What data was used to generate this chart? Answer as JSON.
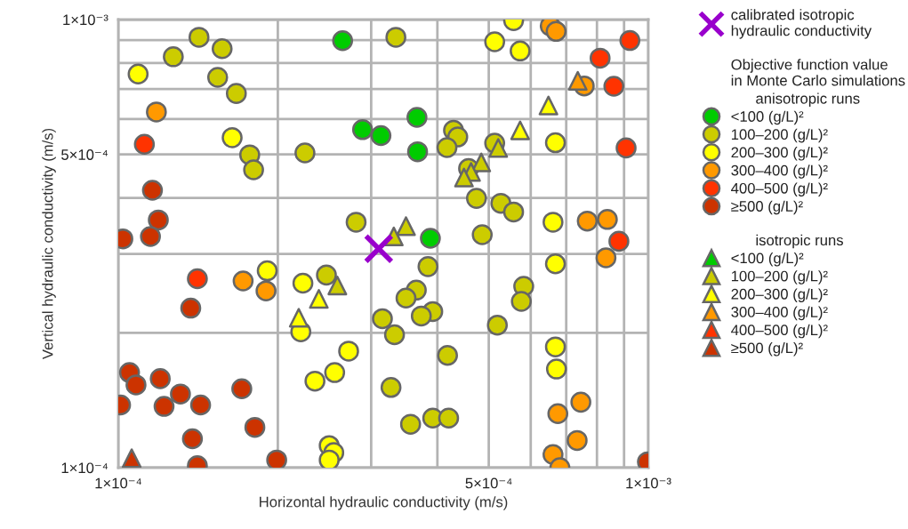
{
  "chart_data": {
    "type": "scatter",
    "xlabel": "Horizontal hydraulic conductivity (m/s)",
    "ylabel": "Vertical hydraulic conductivity (m/s)",
    "log": "xy",
    "xlim": [
      0.0001,
      0.001
    ],
    "ylim": [
      0.0001,
      0.001
    ],
    "xticks": [
      {
        "value": 0.0001,
        "label": "1×10⁻⁴"
      },
      {
        "value": 0.0002,
        "label": null
      },
      {
        "value": 0.0003,
        "label": null
      },
      {
        "value": 0.0004,
        "label": null
      },
      {
        "value": 0.0005,
        "label": "5×10⁻⁴"
      },
      {
        "value": 0.0006,
        "label": null
      },
      {
        "value": 0.0007,
        "label": null
      },
      {
        "value": 0.0008,
        "label": null
      },
      {
        "value": 0.0009,
        "label": null
      },
      {
        "value": 0.001,
        "label": "1×10⁻³"
      }
    ],
    "yticks": [
      {
        "value": 0.0001,
        "label": "1×10⁻⁴"
      },
      {
        "value": 0.0002,
        "label": null
      },
      {
        "value": 0.0003,
        "label": null
      },
      {
        "value": 0.0004,
        "label": null
      },
      {
        "value": 0.0005,
        "label": "5×10⁻⁴"
      },
      {
        "value": 0.0006,
        "label": null
      },
      {
        "value": 0.0007,
        "label": null
      },
      {
        "value": 0.0008,
        "label": null
      },
      {
        "value": 0.0009,
        "label": null
      },
      {
        "value": 0.001,
        "label": "1×10⁻³"
      }
    ],
    "grid": true,
    "legend": "right",
    "legend_title": "Objective function value\nin Monte Carlo simulations",
    "annotations": [
      "anisotropic runs",
      "isotropic runs"
    ],
    "series": [
      {
        "name": "calibrated isotropic\nhydraulic conductivity",
        "marker": "cross",
        "color": "#9900cc",
        "x": [
          0.00031
        ],
        "values": [
          0.000308
        ]
      },
      {
        "name": "<100 (g/L)²",
        "marker": "circle",
        "color": "#00cc00",
        "x": [
          0.000265,
          0.000289,
          0.000313,
          0.000366,
          0.000367,
          0.000388
        ],
        "values": [
          0.000897,
          0.000568,
          0.000551,
          0.000605,
          0.000507,
          0.000325
        ]
      },
      {
        "name": "100–200 (g/L)²",
        "marker": "circle",
        "color": "#cccc00",
        "x": [
          0.000142,
          0.000157,
          0.000127,
          0.000154,
          0.000167,
          0.000177,
          0.00018,
          0.000225,
          0.000281,
          0.000334,
          0.000429,
          0.000437,
          0.000417,
          0.000513,
          0.000458,
          0.000474,
          0.000527,
          0.000557,
          0.000486,
          0.000247,
          0.000384,
          0.000365,
          0.000349,
          0.000392,
          0.000373,
          0.000315,
          0.000332,
          0.000582,
          0.000576,
          0.000519,
          0.000418,
          0.000327,
          0.000356,
          0.000392,
          0.00042
        ],
        "values": [
          0.000913,
          0.000861,
          0.000826,
          0.000743,
          0.000684,
          0.000499,
          0.000462,
          0.000504,
          0.000353,
          0.000913,
          0.000566,
          0.000547,
          0.000518,
          0.00053,
          0.000465,
          0.000399,
          0.000389,
          0.000372,
          0.000331,
          0.000269,
          0.000281,
          0.000249,
          0.000239,
          0.000223,
          0.000218,
          0.000215,
          0.000198,
          0.000254,
          0.000235,
          0.000208,
          0.000178,
          0.000151,
          0.000125,
          0.000129,
          0.000129
        ]
      },
      {
        "name": "200–300 (g/L)²",
        "marker": "circle",
        "color": "#ffff00",
        "x": [
          0.000109,
          0.000164,
          0.000557,
          0.000513,
          0.000573,
          0.000668,
          0.000661,
          0.000668,
          0.000668,
          0.000671,
          0.000191,
          0.000223,
          0.000221,
          0.000272,
          0.000256,
          0.000235,
          0.00025,
          0.000255,
          0.00025
        ],
        "values": [
          0.000756,
          0.000545,
          0.000995,
          0.000892,
          0.000851,
          0.000531,
          0.000353,
          0.000285,
          0.000186,
          0.000166,
          0.000275,
          0.000258,
          0.000201,
          0.000182,
          0.000163,
          0.000156,
          0.000112,
          0.000108,
          0.000104
        ]
      },
      {
        "name": "300–400 (g/L)²",
        "marker": "circle",
        "color": "#ff9900",
        "x": [
          0.000118,
          0.000653,
          0.00067,
          0.000757,
          0.000767,
          0.000837,
          0.000832,
          0.000746,
          0.000675,
          0.000734,
          0.000661,
          0.000681,
          0.000172,
          0.00019
        ],
        "values": [
          0.000622,
          0.000968,
          0.000941,
          0.000711,
          0.000355,
          0.000358,
          0.000294,
          0.00014,
          0.000132,
          0.000115,
          0.000107,
          0.0001,
          0.000261,
          0.000248
        ]
      },
      {
        "name": "400–500 (g/L)²",
        "marker": "circle",
        "color": "#ff3300",
        "x": [
          0.000112,
          0.000923,
          0.000811,
          0.000861,
          0.000908,
          0.00088,
          0.000141
        ],
        "values": [
          0.000527,
          0.000898,
          0.00082,
          0.00071,
          0.000517,
          0.00032,
          0.000264
        ]
      },
      {
        "name": "≥500 (g/L)²",
        "marker": "circle",
        "color": "#cc3300",
        "x": [
          0.000116,
          0.000119,
          0.000102,
          0.000115,
          0.000137,
          0.000105,
          0.000108,
          0.00012,
          0.000101,
          0.000122,
          0.000131,
          0.000143,
          0.000171,
          0.000138,
          0.000181,
          0.000141,
          0.000199,
          0.000996
        ],
        "values": [
          0.000416,
          0.000357,
          0.000324,
          0.000328,
          0.000227,
          0.000163,
          0.000153,
          0.000158,
          0.000138,
          0.000137,
          0.000146,
          0.000138,
          0.00015,
          0.000116,
          0.000123,
          0.000101,
          0.000104,
          0.000103
        ]
      },
      {
        "name": "<100 (g/L)²",
        "marker": "triangle",
        "color": "#00cc00"
      },
      {
        "name": "100–200 (g/L)²",
        "marker": "triangle",
        "color": "#cccc00",
        "x": [
          0.000521,
          0.000484,
          0.000463,
          0.000449,
          0.000349,
          0.000331,
          0.000259
        ],
        "values": [
          0.000517,
          0.00048,
          0.000457,
          0.000444,
          0.000346,
          0.000328,
          0.000255
        ]
      },
      {
        "name": "200–300 (g/L)²",
        "marker": "triangle",
        "color": "#ffff00",
        "x": [
          0.000648,
          0.000573,
          0.000239,
          0.000219
        ],
        "values": [
          0.000643,
          0.000566,
          0.000238,
          0.000216
        ]
      },
      {
        "name": "300–400 (g/L)²",
        "marker": "triangle",
        "color": "#ff9900",
        "x": [
          0.000736
        ],
        "values": [
          0.00073
        ]
      },
      {
        "name": "400–500 (g/L)²",
        "marker": "triangle",
        "color": "#ff3300"
      },
      {
        "name": "≥500 (g/L)²",
        "marker": "triangle",
        "color": "#cc3300",
        "x": [
          0.000106
        ],
        "values": [
          0.000105
        ]
      }
    ]
  }
}
